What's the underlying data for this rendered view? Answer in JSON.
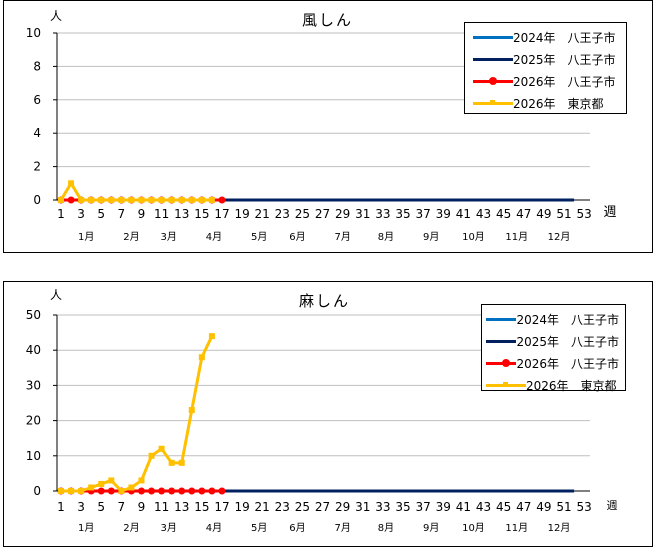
{
  "chart_data": [
    {
      "type": "line",
      "title": "風しん",
      "ylabel": "人",
      "xlabel": "週",
      "ylim": [
        0,
        10
      ],
      "yticks": [
        0,
        2,
        4,
        6,
        8,
        10
      ],
      "xticks": [
        1,
        3,
        5,
        7,
        9,
        11,
        13,
        15,
        17,
        19,
        21,
        23,
        25,
        27,
        29,
        31,
        33,
        35,
        37,
        39,
        41,
        43,
        45,
        47,
        49,
        51,
        53
      ],
      "month_labels": [
        {
          "label": "1月",
          "week": 3.5
        },
        {
          "label": "2月",
          "week": 8
        },
        {
          "label": "3月",
          "week": 11.7
        },
        {
          "label": "4月",
          "week": 16.2
        },
        {
          "label": "5月",
          "week": 20.7
        },
        {
          "label": "6月",
          "week": 24.5
        },
        {
          "label": "7月",
          "week": 29
        },
        {
          "label": "8月",
          "week": 33.3
        },
        {
          "label": "9月",
          "week": 37.8
        },
        {
          "label": "10月",
          "week": 42
        },
        {
          "label": "11月",
          "week": 46.3
        },
        {
          "label": "12月",
          "week": 50.5
        }
      ],
      "grid": true,
      "legend_position": "upper right",
      "series": [
        {
          "name": "2024年　八王子市",
          "color": "#0070C0",
          "marker": "none",
          "values": [
            0,
            0,
            0,
            0,
            0,
            0,
            0,
            0,
            0,
            0,
            0,
            0,
            0,
            0,
            0,
            0,
            0,
            0,
            0,
            0,
            0,
            0,
            0,
            0,
            0,
            0,
            0,
            0,
            0,
            0,
            0,
            0,
            0,
            0,
            0,
            0,
            0,
            0,
            0,
            0,
            0,
            0,
            0,
            0,
            0,
            0,
            0,
            0,
            0,
            0,
            0,
            0
          ]
        },
        {
          "name": "2025年　八王子市",
          "color": "#002060",
          "marker": "none",
          "values": [
            0,
            0,
            0,
            0,
            0,
            0,
            0,
            0,
            0,
            0,
            0,
            0,
            0,
            0,
            0,
            0,
            0,
            0,
            0,
            0,
            0,
            0,
            0,
            0,
            0,
            0,
            0,
            0,
            0,
            0,
            0,
            0,
            0,
            0,
            0,
            0,
            0,
            0,
            0,
            0,
            0,
            0,
            0,
            0,
            0,
            0,
            0,
            0,
            0,
            0,
            0,
            0
          ]
        },
        {
          "name": "2026年　八王子市",
          "color": "#FF0000",
          "marker": "circle",
          "values": [
            0,
            0,
            0,
            0,
            0,
            0,
            0,
            0,
            0,
            0,
            0,
            0,
            0,
            0,
            0,
            0,
            0
          ]
        },
        {
          "name": "2026年　東京都",
          "color": "#FFC000",
          "marker": "square",
          "values": [
            0,
            1,
            0,
            0,
            0,
            0,
            0,
            0,
            0,
            0,
            0,
            0,
            0,
            0,
            0,
            0
          ]
        }
      ]
    },
    {
      "type": "line",
      "title": "麻しん",
      "ylabel": "人",
      "xlabel": "週",
      "ylim": [
        0,
        50
      ],
      "yticks": [
        0,
        10,
        20,
        30,
        40,
        50
      ],
      "xticks": [
        1,
        3,
        5,
        7,
        9,
        11,
        13,
        15,
        17,
        19,
        21,
        23,
        25,
        27,
        29,
        31,
        33,
        35,
        37,
        39,
        41,
        43,
        45,
        47,
        49,
        51,
        53
      ],
      "month_labels": [
        {
          "label": "1月",
          "week": 3.5
        },
        {
          "label": "2月",
          "week": 8
        },
        {
          "label": "3月",
          "week": 11.7
        },
        {
          "label": "4月",
          "week": 16.2
        },
        {
          "label": "5月",
          "week": 20.7
        },
        {
          "label": "6月",
          "week": 24.5
        },
        {
          "label": "7月",
          "week": 29
        },
        {
          "label": "8月",
          "week": 33.3
        },
        {
          "label": "9月",
          "week": 37.8
        },
        {
          "label": "10月",
          "week": 42
        },
        {
          "label": "11月",
          "week": 46.3
        },
        {
          "label": "12月",
          "week": 50.5
        }
      ],
      "grid": true,
      "legend_position": "upper right",
      "series": [
        {
          "name": "2024年　八王子市",
          "color": "#0070C0",
          "marker": "none",
          "values": [
            0,
            0,
            0,
            0,
            0,
            0,
            0,
            0,
            0,
            0,
            0,
            0,
            0,
            0,
            0,
            0,
            0,
            0,
            0,
            0,
            0,
            0,
            0,
            0,
            0,
            0,
            0,
            0,
            0,
            0,
            0,
            0,
            0,
            0,
            0,
            0,
            0,
            0,
            0,
            0,
            0,
            0,
            0,
            0,
            0,
            0,
            0,
            0,
            0,
            0,
            0,
            0
          ]
        },
        {
          "name": "2025年　八王子市",
          "color": "#002060",
          "marker": "none",
          "values": [
            0,
            0,
            0,
            0,
            0,
            0,
            0,
            0,
            0,
            0,
            0,
            0,
            0,
            0,
            0,
            0,
            0,
            0,
            0,
            0,
            0,
            0,
            0,
            0,
            0,
            0,
            0,
            0,
            0,
            0,
            0,
            0,
            0,
            0,
            0,
            0,
            0,
            0,
            0,
            0,
            0,
            0,
            0,
            0,
            0,
            0,
            0,
            0,
            0,
            0,
            0,
            0
          ]
        },
        {
          "name": "2026年　八王子市",
          "color": "#FF0000",
          "marker": "circle",
          "values": [
            0,
            0,
            0,
            0,
            0,
            0,
            0,
            0,
            0,
            0,
            0,
            0,
            0,
            0,
            0,
            0,
            0
          ]
        },
        {
          "name": "2026年　東京都",
          "color": "#FFC000",
          "marker": "square",
          "values": [
            0,
            0,
            0,
            1,
            2,
            3,
            0,
            1,
            3,
            10,
            12,
            8,
            8,
            23,
            38,
            44
          ]
        }
      ]
    }
  ]
}
